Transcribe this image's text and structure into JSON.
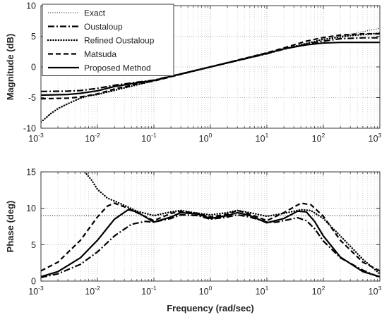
{
  "chart_data": [
    {
      "type": "line",
      "xscale": "log",
      "xlim": [
        0.001,
        1000
      ],
      "ylim": [
        -10,
        10
      ],
      "xlabel": "",
      "ylabel": "Magnitude (dB)",
      "grid": true,
      "legend": "top-left",
      "xticks": [
        {
          "base": "10",
          "exp": "-3"
        },
        {
          "base": "10",
          "exp": "-2"
        },
        {
          "base": "10",
          "exp": "-1"
        },
        {
          "base": "10",
          "exp": "0"
        },
        {
          "base": "10",
          "exp": "1"
        },
        {
          "base": "10",
          "exp": "2"
        },
        {
          "base": "10",
          "exp": "3"
        }
      ],
      "yticks": [
        "-10",
        "-5",
        "0",
        "5",
        "10"
      ],
      "series": [
        {
          "name": "Exact",
          "style": "dotted-thin",
          "x": [
            0.001,
            0.0015,
            0.002,
            0.003,
            0.005,
            0.007,
            0.01,
            0.1,
            1,
            10,
            100,
            1000
          ],
          "y": [
            -9.0,
            -7.6,
            -6.8,
            -6.0,
            -5.1,
            -4.7,
            -4.5,
            -2.25,
            0,
            2.25,
            4.5,
            6.3
          ]
        },
        {
          "name": "Oustaloup",
          "style": "dashdot",
          "x": [
            0.001,
            0.003,
            0.005,
            0.01,
            0.02,
            0.05,
            0.1,
            1,
            10,
            20,
            50,
            100,
            200,
            500,
            1000
          ],
          "y": [
            -4.0,
            -3.95,
            -3.85,
            -3.5,
            -3.0,
            -2.5,
            -2.15,
            0,
            2.15,
            2.9,
            3.7,
            4.2,
            4.6,
            4.75,
            4.75
          ]
        },
        {
          "name": "Refined Oustaloup",
          "style": "dotted-thick",
          "x": [
            0.001,
            0.0015,
            0.002,
            0.003,
            0.005,
            0.007,
            0.01,
            0.1,
            1,
            10,
            100,
            300,
            1000
          ],
          "y": [
            -9.0,
            -7.6,
            -6.8,
            -6.0,
            -5.1,
            -4.7,
            -4.5,
            -2.25,
            0,
            2.25,
            4.5,
            5.1,
            5.5
          ]
        },
        {
          "name": "Matsuda",
          "style": "dashed",
          "x": [
            0.001,
            0.003,
            0.005,
            0.01,
            0.02,
            0.05,
            0.1,
            1,
            10,
            20,
            50,
            100,
            200,
            500,
            1000
          ],
          "y": [
            -5.2,
            -5.1,
            -4.9,
            -4.4,
            -3.6,
            -2.8,
            -2.3,
            0,
            2.3,
            3.1,
            4.2,
            4.8,
            5.2,
            5.4,
            5.4
          ]
        },
        {
          "name": "Proposed Method",
          "style": "solid",
          "x": [
            0.001,
            0.003,
            0.005,
            0.01,
            0.02,
            0.05,
            0.1,
            1,
            10,
            20,
            50,
            100,
            200,
            500,
            1000
          ],
          "y": [
            -4.6,
            -4.5,
            -4.3,
            -3.9,
            -3.2,
            -2.6,
            -2.2,
            0,
            2.2,
            2.95,
            3.6,
            3.9,
            4.0,
            4.0,
            4.0
          ]
        }
      ]
    },
    {
      "type": "line",
      "xscale": "log",
      "xlim": [
        0.001,
        1000
      ],
      "ylim": [
        0,
        15
      ],
      "xlabel": "Frequency (rad/sec)",
      "ylabel": "Phase (deg)",
      "grid": true,
      "xticks": [
        {
          "base": "10",
          "exp": "-3"
        },
        {
          "base": "10",
          "exp": "-2"
        },
        {
          "base": "10",
          "exp": "-1"
        },
        {
          "base": "10",
          "exp": "0"
        },
        {
          "base": "10",
          "exp": "1"
        },
        {
          "base": "10",
          "exp": "2"
        },
        {
          "base": "10",
          "exp": "3"
        }
      ],
      "yticks": [
        "0",
        "5",
        "10",
        "15"
      ],
      "series": [
        {
          "name": "Exact",
          "style": "dotted-thin",
          "x": [
            0.001,
            1000
          ],
          "y": [
            9,
            9
          ]
        },
        {
          "name": "Oustaloup",
          "style": "dashdot",
          "x": [
            0.001,
            0.002,
            0.005,
            0.01,
            0.02,
            0.04,
            0.07,
            0.1,
            0.2,
            0.3,
            0.6,
            1,
            2,
            3,
            5,
            10,
            15,
            20,
            35,
            50,
            70,
            100,
            200,
            500,
            1000
          ],
          "y": [
            0.5,
            1.0,
            2.3,
            4.0,
            6.2,
            7.8,
            8.2,
            8.1,
            8.6,
            9.1,
            9.0,
            8.5,
            8.8,
            9.1,
            8.8,
            8.1,
            8.1,
            8.3,
            8.7,
            8.3,
            7.2,
            5.5,
            3.2,
            1.5,
            0.5
          ]
        },
        {
          "name": "Refined Oustaloup",
          "style": "dotted-thick",
          "x": [
            0.006,
            0.008,
            0.01,
            0.015,
            0.02,
            0.03,
            0.05,
            0.1,
            0.2,
            0.3,
            0.5,
            1,
            2,
            3,
            5,
            10,
            20,
            40,
            60,
            100,
            200,
            500,
            1000
          ],
          "y": [
            15,
            13.8,
            12.6,
            11.4,
            11.0,
            10.4,
            9.6,
            9.0,
            9.5,
            9.7,
            9.4,
            9.1,
            9.4,
            9.7,
            9.4,
            8.9,
            9.3,
            9.8,
            9.7,
            8.6,
            6.2,
            3.0,
            1.0
          ]
        },
        {
          "name": "Matsuda",
          "style": "dashed",
          "x": [
            0.001,
            0.002,
            0.005,
            0.01,
            0.015,
            0.02,
            0.03,
            0.05,
            0.1,
            0.2,
            0.3,
            0.6,
            1,
            2,
            3,
            5,
            10,
            20,
            40,
            60,
            100,
            200,
            500,
            1000
          ],
          "y": [
            1.4,
            2.6,
            5.6,
            8.8,
            10.3,
            10.7,
            10.2,
            9.4,
            8.3,
            9.3,
            9.6,
            9.3,
            8.8,
            9.2,
            9.7,
            9.2,
            8.3,
            9.4,
            10.7,
            10.5,
            8.9,
            5.6,
            2.6,
            1.4
          ]
        },
        {
          "name": "Proposed Method",
          "style": "solid",
          "x": [
            0.001,
            0.002,
            0.005,
            0.01,
            0.02,
            0.035,
            0.05,
            0.1,
            0.2,
            0.3,
            0.6,
            1,
            2,
            3,
            5,
            10,
            20,
            35,
            50,
            70,
            100,
            200,
            500,
            1000
          ],
          "y": [
            0.6,
            1.3,
            3.2,
            5.6,
            8.5,
            9.8,
            9.5,
            8.1,
            8.8,
            9.4,
            9.2,
            8.6,
            9.0,
            9.4,
            9.0,
            8.0,
            8.6,
            9.6,
            9.5,
            8.2,
            6.2,
            3.3,
            1.3,
            0.6
          ]
        }
      ]
    }
  ]
}
